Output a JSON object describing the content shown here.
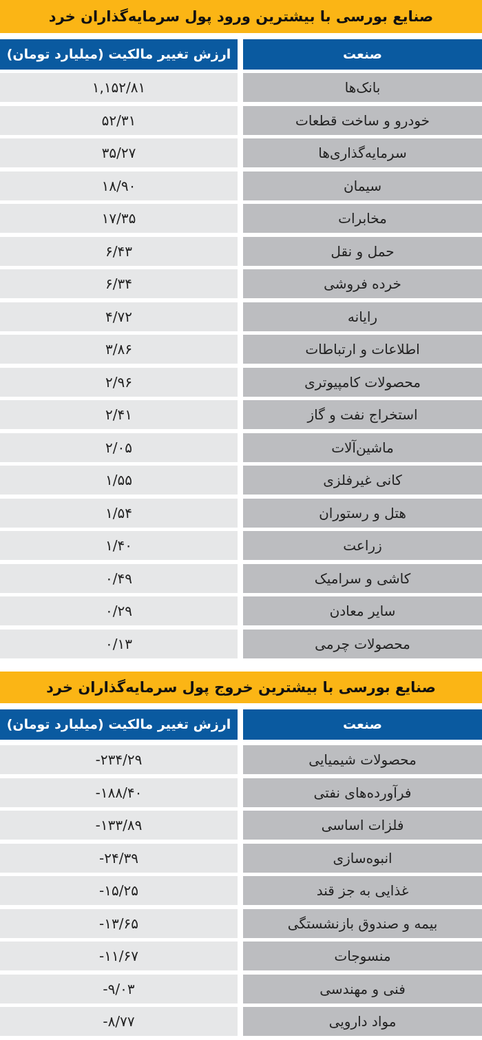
{
  "inflow": {
    "title": "صنایع بورسی با بیشترین ورود پول سرمایه‌گذاران خرد",
    "headers": {
      "industry": "صنعت",
      "value": "ارزش تغییر مالکیت (میلیارد تومان)"
    },
    "rows": [
      {
        "industry": "بانک‌ها",
        "value": "۱,۱۵۲/۸۱"
      },
      {
        "industry": "خودرو و ساخت قطعات",
        "value": "۵۲/۳۱"
      },
      {
        "industry": "سرمایه‌گذاری‌ها",
        "value": "۳۵/۲۷"
      },
      {
        "industry": "سیمان",
        "value": "۱۸/۹۰"
      },
      {
        "industry": "مخابرات",
        "value": "۱۷/۳۵"
      },
      {
        "industry": "حمل و نقل",
        "value": "۶/۴۳"
      },
      {
        "industry": "خرده فروشی",
        "value": "۶/۳۴"
      },
      {
        "industry": "رایانه",
        "value": "۴/۷۲"
      },
      {
        "industry": "اطلاعات و ارتباطات",
        "value": "۳/۸۶"
      },
      {
        "industry": "محصولات کامپیوتری",
        "value": "۲/۹۶"
      },
      {
        "industry": "استخراج نفت و گاز",
        "value": "۲/۴۱"
      },
      {
        "industry": "ماشین‌آلات",
        "value": "۲/۰۵"
      },
      {
        "industry": "کانی غیرفلزی",
        "value": "۱/۵۵"
      },
      {
        "industry": "هتل و رستوران",
        "value": "۱/۵۴"
      },
      {
        "industry": "زراعت",
        "value": "۱/۴۰"
      },
      {
        "industry": "کاشی و سرامیک",
        "value": "۰/۴۹"
      },
      {
        "industry": "سایر معادن",
        "value": "۰/۲۹"
      },
      {
        "industry": "محصولات چرمی",
        "value": "۰/۱۳"
      }
    ]
  },
  "outflow": {
    "title": "صنایع بورسی با بیشترین خروج پول سرمایه‌گذاران خرد",
    "headers": {
      "industry": "صنعت",
      "value": "ارزش تغییر مالکیت (میلیارد تومان)"
    },
    "rows": [
      {
        "industry": "محصولات شیمیایی",
        "value": "-۲۳۴/۲۹"
      },
      {
        "industry": "فرآورده‌های نفتی",
        "value": "-۱۸۸/۴۰"
      },
      {
        "industry": "فلزات اساسی",
        "value": "-۱۳۳/۸۹"
      },
      {
        "industry": "انبوه‌سازی",
        "value": "-۲۴/۳۹"
      },
      {
        "industry": "غذایی به جز قند",
        "value": "-۱۵/۲۵"
      },
      {
        "industry": "بیمه و صندوق بازنشستگی",
        "value": "-۱۳/۶۵"
      },
      {
        "industry": "منسوجات",
        "value": "-۱۱/۶۷"
      },
      {
        "industry": "فنی و مهندسی",
        "value": "-۹/۰۳"
      },
      {
        "industry": "مواد دارویی",
        "value": "-۸/۷۷"
      }
    ]
  },
  "colors": {
    "title_bg": "#fbb515",
    "header_bg": "#0a5aa0",
    "value_cell": "#e6e7e8",
    "industry_cell": "#bcbdc0"
  }
}
